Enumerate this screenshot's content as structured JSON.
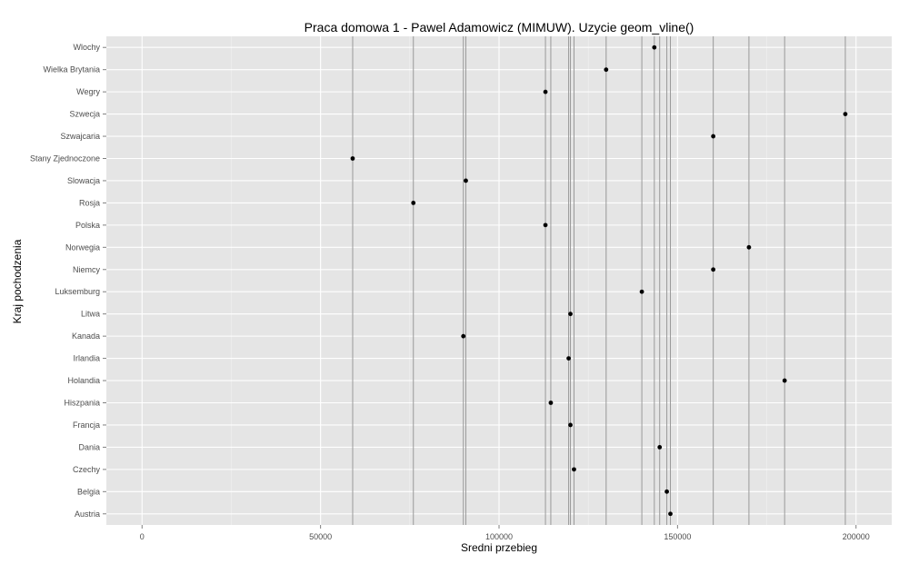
{
  "chart_data": {
    "type": "scatter",
    "title": "Praca domowa 1 - Pawel Adamowicz (MIMUW). Uzycie geom_vline()",
    "xlabel": "Sredni przebieg",
    "ylabel": "Kraj pochodzenia",
    "xlim": [
      -10000,
      210000
    ],
    "x_ticks": [
      0,
      50000,
      100000,
      150000,
      200000
    ],
    "x_tick_labels": [
      "0",
      "50000",
      "100000",
      "150000",
      "200000"
    ],
    "grid": true,
    "legend": "none",
    "colors": {
      "panel": "#e5e5e5",
      "grid_major": "#ffffff",
      "grid_minor": "#f2f2f2",
      "vline": "#999999",
      "point": "#000000"
    },
    "categories": [
      "Austria",
      "Belgia",
      "Czechy",
      "Dania",
      "Francja",
      "Hiszpania",
      "Holandia",
      "Irlandia",
      "Kanada",
      "Litwa",
      "Luksemburg",
      "Niemcy",
      "Norwegia",
      "Polska",
      "Rosja",
      "Slowacja",
      "Stany Zjednoczone",
      "Szwajcaria",
      "Szwecja",
      "Wegry",
      "Wielka Brytania",
      "Wlochy"
    ],
    "values": [
      148000,
      147000,
      121000,
      145000,
      120000,
      114500,
      180000,
      119500,
      90000,
      120000,
      140000,
      160000,
      170000,
      113000,
      76000,
      90700,
      59000,
      160000,
      197000,
      113000,
      130000,
      143500
    ],
    "vlines": [
      59000,
      76000,
      90000,
      90700,
      113000,
      114500,
      119500,
      120000,
      121000,
      130000,
      140000,
      143500,
      145000,
      147000,
      148000,
      160000,
      170000,
      180000,
      197000
    ]
  }
}
